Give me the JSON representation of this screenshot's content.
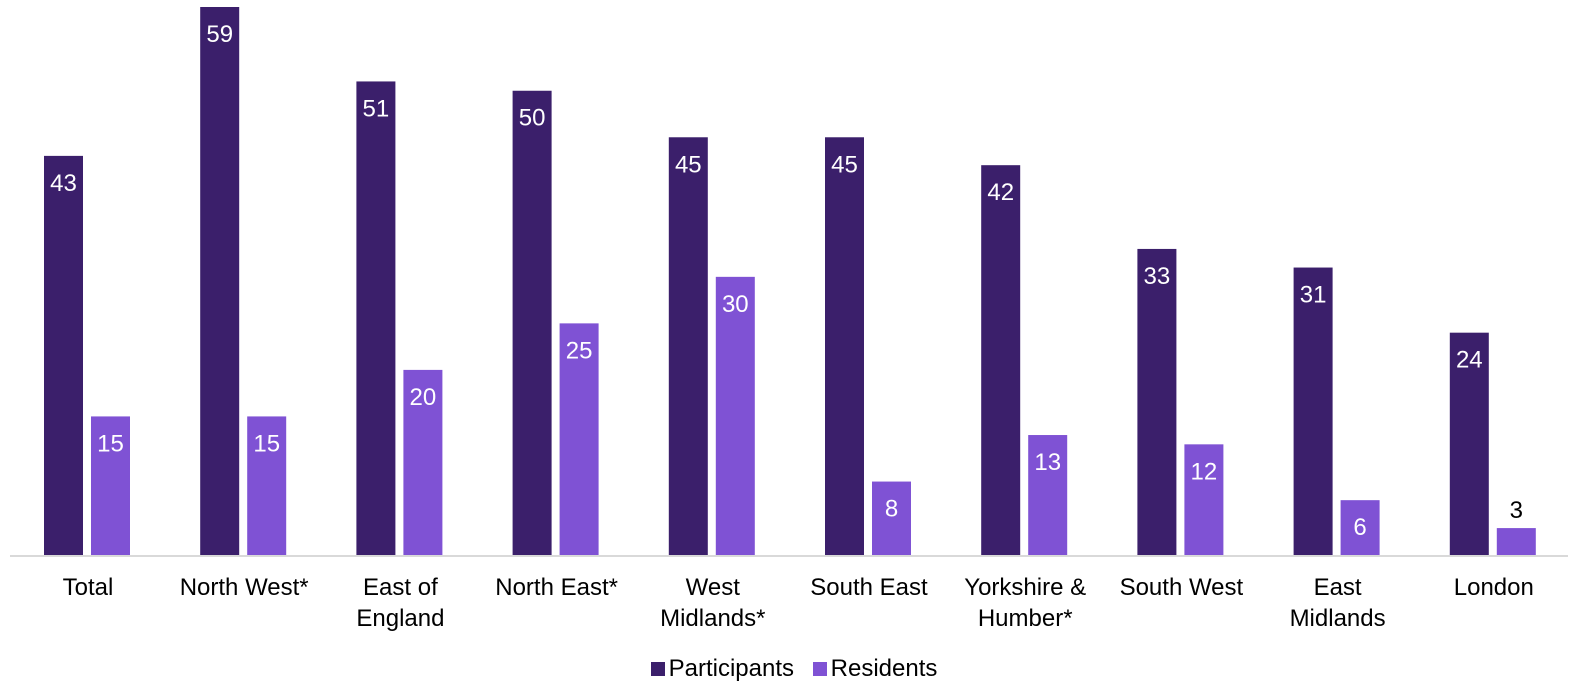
{
  "chart_data": {
    "type": "bar",
    "categories": [
      [
        "Total"
      ],
      [
        "North West*"
      ],
      [
        "East of",
        "England"
      ],
      [
        "North East*"
      ],
      [
        "West",
        "Midlands*"
      ],
      [
        "South East"
      ],
      [
        "Yorkshire &",
        "Humber*"
      ],
      [
        "South West"
      ],
      [
        "East",
        "Midlands"
      ],
      [
        "London"
      ]
    ],
    "series": [
      {
        "name": "Participants",
        "color": "#3b1f6b",
        "label_color": "#ffffff",
        "values": [
          43,
          59,
          51,
          50,
          45,
          45,
          42,
          33,
          31,
          24
        ]
      },
      {
        "name": "Residents",
        "color": "#7f52d4",
        "label_color": "#ffffff",
        "values": [
          15,
          15,
          20,
          25,
          30,
          8,
          13,
          12,
          6,
          3
        ]
      }
    ],
    "ylim": [
      0,
      60
    ],
    "grid": false,
    "legend_position": "bottom-center",
    "data_labels": true
  }
}
